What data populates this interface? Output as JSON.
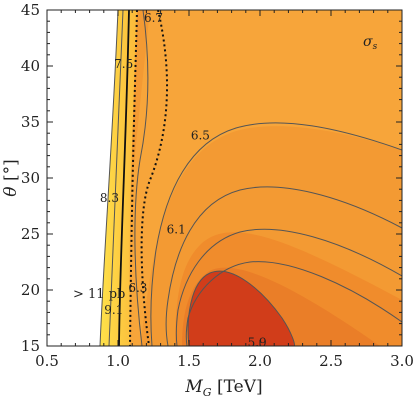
{
  "chart_data": {
    "type": "contour",
    "title": "",
    "xlabel": "M_G [TeV]",
    "ylabel": "θ [°]",
    "xlim": [
      0.5,
      3.0
    ],
    "ylim": [
      15,
      45
    ],
    "x_ticks": [
      "0.5",
      "1.0",
      "1.5",
      "2.0",
      "2.5",
      "3.0"
    ],
    "y_ticks": [
      "15",
      "20",
      "25",
      "30",
      "35",
      "40",
      "45"
    ],
    "quantity_label": "σ_s",
    "region_annotation": "> 11 pb",
    "contours": [
      {
        "label": "9.1",
        "label_at": [
          0.97,
          18.2
        ],
        "style": "solid"
      },
      {
        "label": "8.3",
        "label_at": [
          0.94,
          28.2
        ],
        "style": "solid"
      },
      {
        "label": "7.5",
        "label_at": [
          1.04,
          40.2
        ],
        "style": "solid"
      },
      {
        "label": "6.7",
        "label_at": [
          1.25,
          44.3
        ],
        "style": "solid"
      },
      {
        "label": "6.5",
        "label_at": [
          1.58,
          33.8
        ],
        "style": "solid"
      },
      {
        "label": "6.3",
        "label_at": [
          1.14,
          20.2
        ],
        "style": "solid"
      },
      {
        "label": "6.1",
        "label_at": [
          1.41,
          25.4
        ],
        "style": "solid"
      },
      {
        "label": "5.9",
        "label_at": [
          1.98,
          15.3
        ],
        "style": "solid"
      }
    ],
    "colors": {
      "white_region": "#ffffff",
      "light_yellow": "#ffe24a",
      "yellow": "#fbbd3a",
      "orange": "#f7a438",
      "base_orange": "#f39a33",
      "dark_orange": "#f0892a",
      "red_orange": "#e06a22",
      "deep_red": "#d33a18",
      "line": "#555555",
      "line_dark": "#111111"
    }
  }
}
